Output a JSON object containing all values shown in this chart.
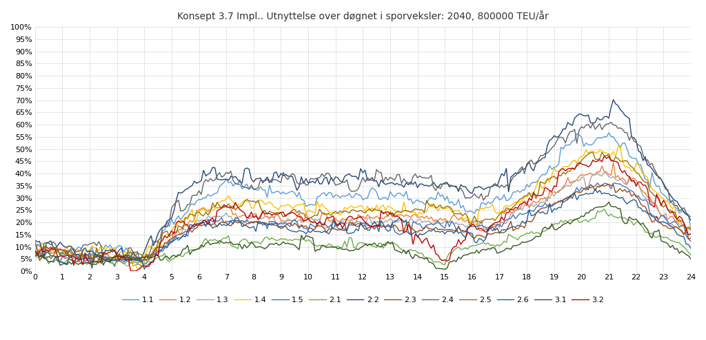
{
  "title": "Konsept 3.7 Impl.. Utnyttelse over døgnet i sporveksler: 2040, 800000 TEU/år",
  "xlim": [
    0,
    24
  ],
  "ylim": [
    0,
    1.0
  ],
  "yticks": [
    0,
    0.05,
    0.1,
    0.15,
    0.2,
    0.25,
    0.3,
    0.35,
    0.4,
    0.45,
    0.5,
    0.55,
    0.6,
    0.65,
    0.7,
    0.75,
    0.8,
    0.85,
    0.9,
    0.95,
    1.0
  ],
  "xticks": [
    0,
    1,
    2,
    3,
    4,
    5,
    6,
    7,
    8,
    9,
    10,
    11,
    12,
    13,
    14,
    15,
    16,
    17,
    18,
    19,
    20,
    21,
    22,
    23,
    24
  ],
  "series_colors": {
    "1.1": "#5b9bd5",
    "1.2": "#ed7d31",
    "1.3": "#a5a5a5",
    "1.4": "#ffc000",
    "1.5": "#4472c4",
    "2.1": "#70ad47",
    "2.2": "#264478",
    "2.3": "#9e480e",
    "2.4": "#636363",
    "2.5": "#997300",
    "2.6": "#255e91",
    "3.1": "#375623",
    "3.2": "#c00000"
  },
  "background_color": "#ffffff",
  "grid_color": "#d9d9d9"
}
